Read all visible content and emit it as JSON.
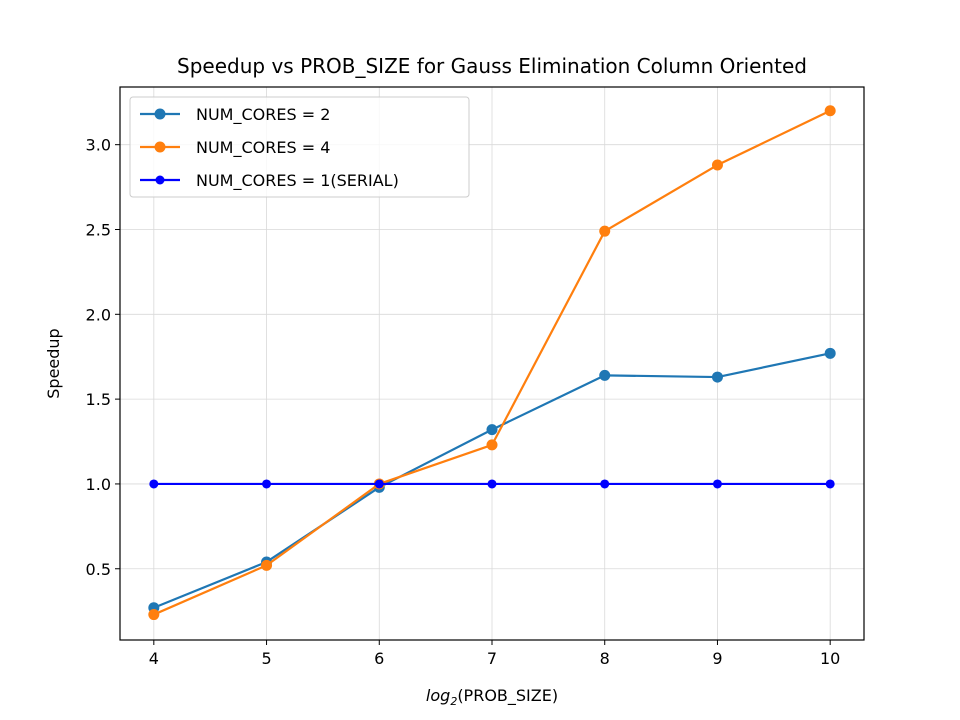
{
  "chart_data": {
    "type": "line",
    "title": "Speedup vs PROB_SIZE for Gauss Elimination Column Oriented",
    "xlabel_prefix": "log",
    "xlabel_sub": "2",
    "xlabel_suffix": "(PROB_SIZE)",
    "ylabel": "Speedup",
    "x": [
      4,
      5,
      6,
      7,
      8,
      9,
      10
    ],
    "xlim": [
      3.7,
      10.3
    ],
    "ylim": [
      0.08,
      3.34
    ],
    "xticks": [
      4,
      5,
      6,
      7,
      8,
      9,
      10
    ],
    "yticks": [
      0.5,
      1.0,
      1.5,
      2.0,
      2.5,
      3.0
    ],
    "ytick_labels": [
      "0.5",
      "1.0",
      "1.5",
      "2.0",
      "2.5",
      "3.0"
    ],
    "grid": true,
    "legend_position": "top-left",
    "series": [
      {
        "name": "NUM_CORES = 2",
        "color": "#1f77b4",
        "marker": "circle",
        "values": [
          0.27,
          0.54,
          0.98,
          1.32,
          1.64,
          1.63,
          1.77
        ]
      },
      {
        "name": "NUM_CORES = 4",
        "color": "#ff7f0e",
        "marker": "circle",
        "values": [
          0.23,
          0.52,
          1.0,
          1.23,
          2.49,
          2.88,
          3.2
        ]
      },
      {
        "name": "NUM_CORES = 1(SERIAL)",
        "color": "#0000ff",
        "marker": "small-circle",
        "values": [
          1.0,
          1.0,
          1.0,
          1.0,
          1.0,
          1.0,
          1.0
        ]
      }
    ]
  }
}
